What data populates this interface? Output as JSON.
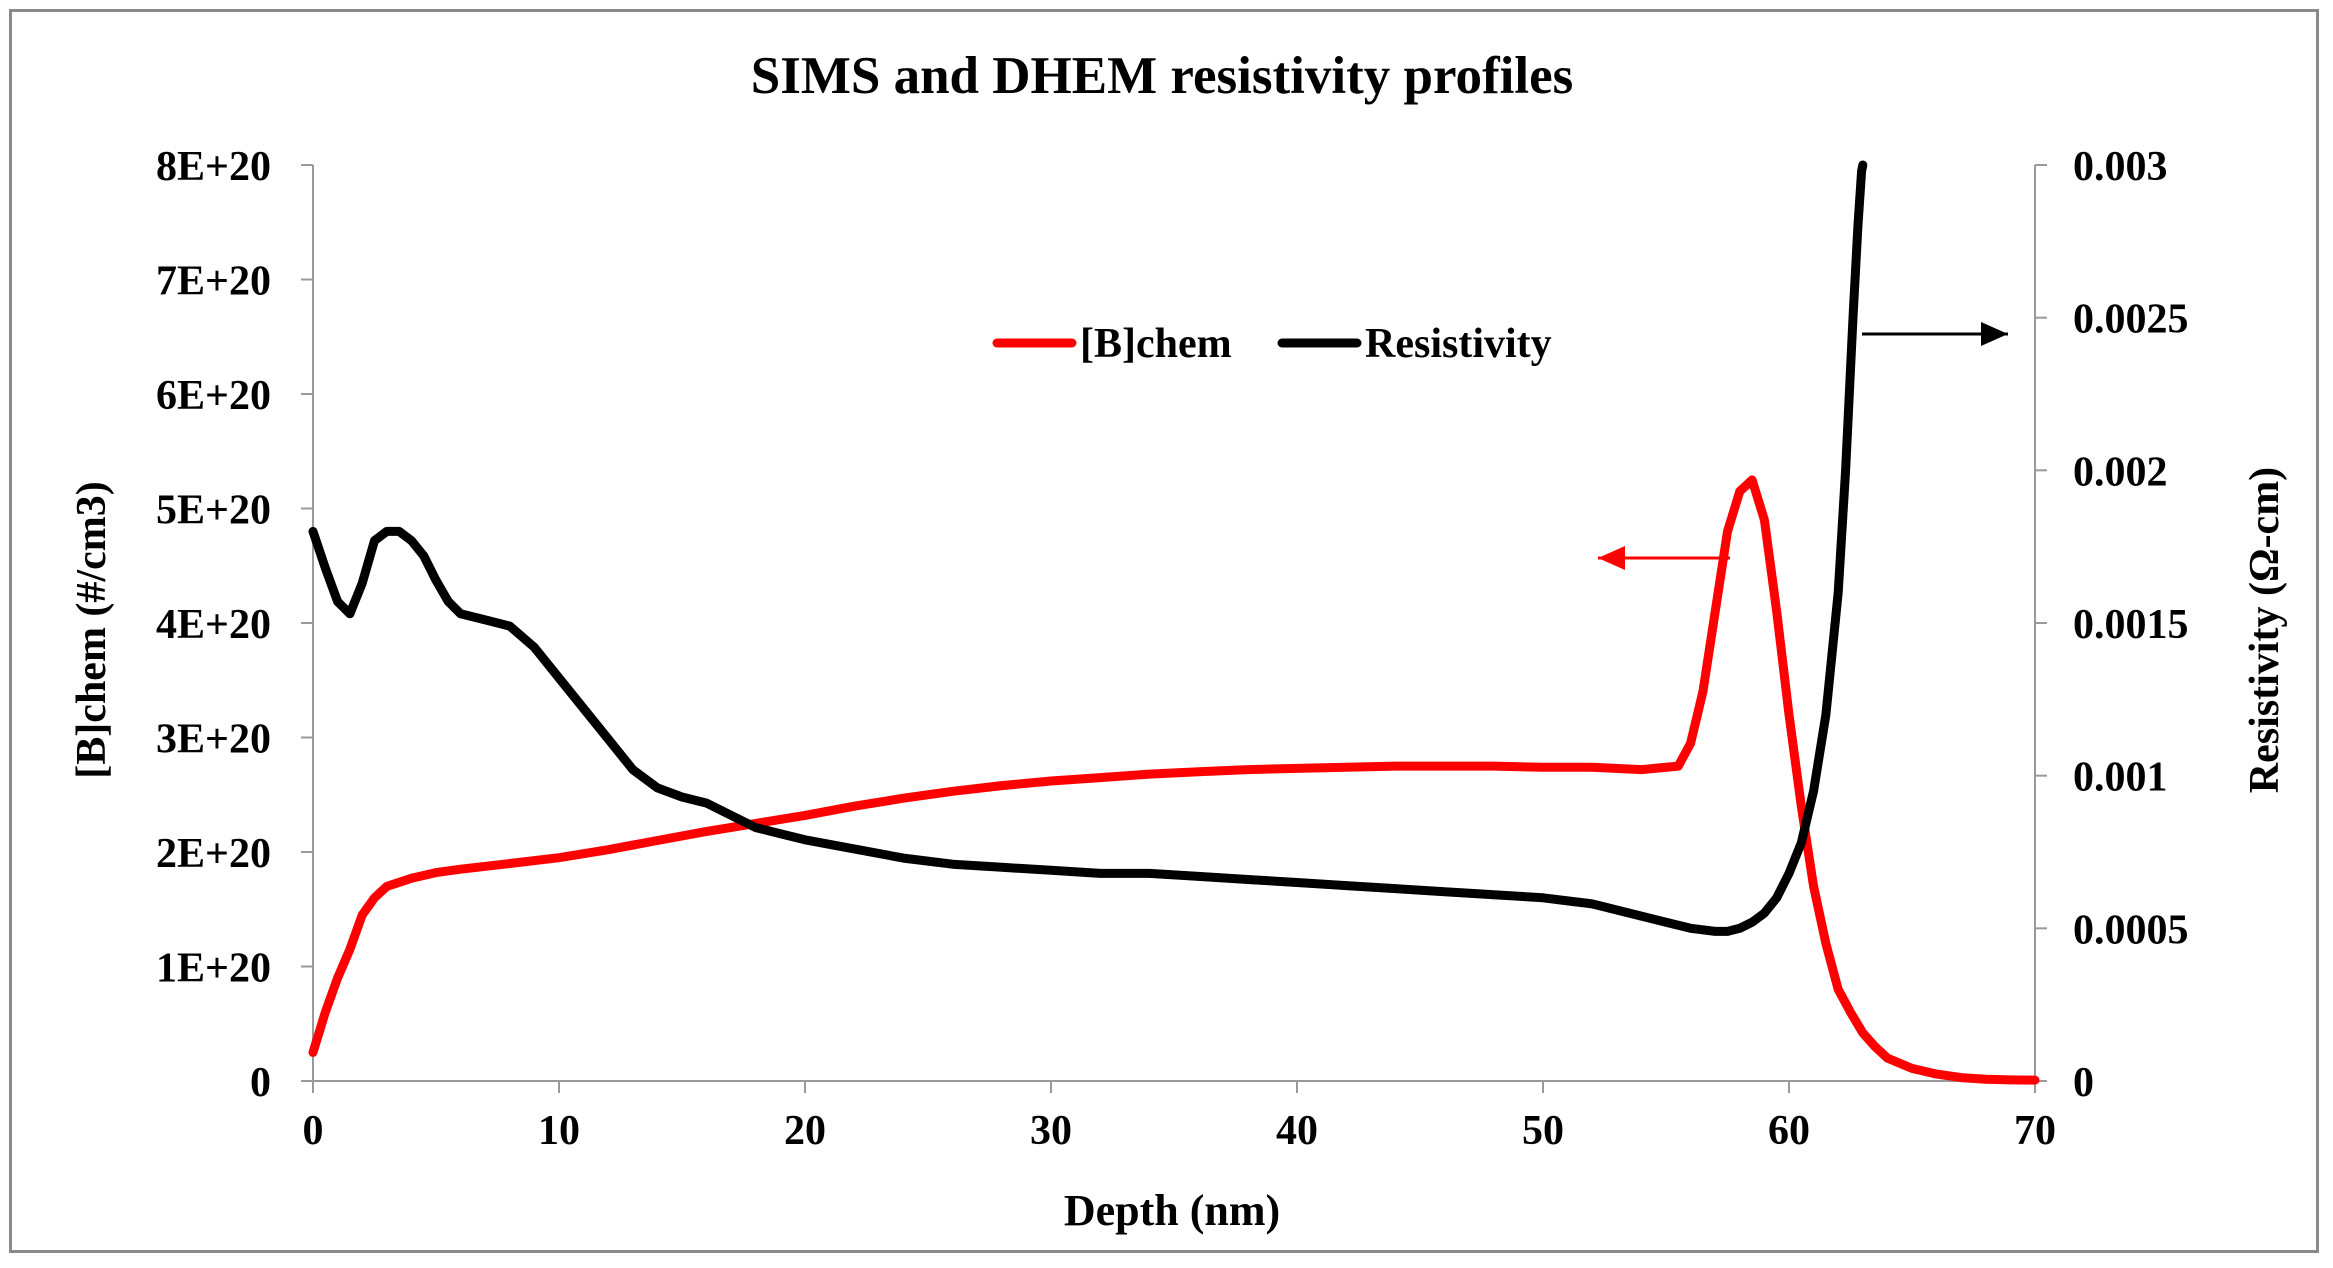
{
  "chart_data": {
    "type": "line",
    "title": "SIMS and DHEM resistivity profiles",
    "xlabel": "Depth (nm)",
    "ylabel_left": "[B]chem (#/cm3)",
    "ylabel_right": "Resistivity (Ω-cm)",
    "xlim": [
      0,
      70
    ],
    "ylim_left": [
      0,
      8e+20
    ],
    "ylim_right": [
      0,
      0.003
    ],
    "x_ticks": [
      0,
      10,
      20,
      30,
      40,
      50,
      60,
      70
    ],
    "x_tick_labels": [
      "0",
      "10",
      "20",
      "30",
      "40",
      "50",
      "60",
      "70"
    ],
    "left_ticks": [
      0,
      1e+20,
      2e+20,
      3e+20,
      4e+20,
      5e+20,
      6e+20,
      7e+20,
      8e+20
    ],
    "left_tick_labels": [
      "0",
      "1E+20",
      "2E+20",
      "3E+20",
      "4E+20",
      "5E+20",
      "6E+20",
      "7E+20",
      "8E+20"
    ],
    "right_ticks": [
      0,
      0.0005,
      0.001,
      0.0015,
      0.002,
      0.0025,
      0.003
    ],
    "right_tick_labels": [
      "0",
      "0.0005",
      "0.001",
      "0.0015",
      "0.002",
      "0.0025",
      "0.003"
    ],
    "grid": false,
    "legend_position": "top-center",
    "series": [
      {
        "name": "[B]chem",
        "axis": "left",
        "color": "#ff0000",
        "x": [
          0,
          0.5,
          1,
          1.5,
          2,
          2.5,
          3,
          4,
          5,
          6,
          8,
          10,
          12,
          14,
          16,
          18,
          20,
          22,
          24,
          26,
          28,
          30,
          32,
          34,
          36,
          38,
          40,
          42,
          44,
          46,
          48,
          50,
          52,
          54,
          55.5,
          56,
          56.5,
          57,
          57.5,
          58,
          58.5,
          59,
          59.5,
          60,
          60.5,
          61,
          61.5,
          62,
          62.5,
          63,
          63.5,
          64,
          65,
          66,
          67,
          68,
          69,
          70
        ],
        "y": [
          2.5e+19,
          6e+19,
          9e+19,
          1.15e+20,
          1.45e+20,
          1.6e+20,
          1.7e+20,
          1.77e+20,
          1.82e+20,
          1.85e+20,
          1.9e+20,
          1.95e+20,
          2.02e+20,
          2.1e+20,
          2.18e+20,
          2.25e+20,
          2.32e+20,
          2.4e+20,
          2.47e+20,
          2.53e+20,
          2.58e+20,
          2.62e+20,
          2.65e+20,
          2.68e+20,
          2.7e+20,
          2.72e+20,
          2.73e+20,
          2.74e+20,
          2.75e+20,
          2.75e+20,
          2.75e+20,
          2.74e+20,
          2.74e+20,
          2.72e+20,
          2.75e+20,
          2.95e+20,
          3.4e+20,
          4.1e+20,
          4.8e+20,
          5.15e+20,
          5.25e+20,
          4.9e+20,
          4.1e+20,
          3.2e+20,
          2.4e+20,
          1.7e+20,
          1.2e+20,
          8e+19,
          6e+19,
          4.2e+19,
          3e+19,
          2e+19,
          1.1e+19,
          6e+18,
          3e+18,
          1.5e+18,
          1e+18,
          8e+17
        ]
      },
      {
        "name": "Resistivity",
        "axis": "right",
        "color": "#000000",
        "x": [
          0,
          0.5,
          1,
          1.5,
          2,
          2.5,
          3,
          3.5,
          4,
          4.5,
          5,
          5.5,
          6,
          7,
          8,
          9,
          10,
          11,
          12,
          13,
          14,
          15,
          16,
          17,
          18,
          19,
          20,
          22,
          24,
          26,
          28,
          30,
          32,
          34,
          36,
          38,
          40,
          42,
          44,
          46,
          48,
          50,
          51,
          52,
          53,
          54,
          55,
          56,
          57,
          57.5,
          58,
          58.5,
          59,
          59.5,
          60,
          60.5,
          61,
          61.5,
          62,
          62.3,
          62.6,
          62.8,
          62.95,
          63
        ],
        "y": [
          0.0018,
          0.00168,
          0.00157,
          0.00153,
          0.00163,
          0.00177,
          0.0018,
          0.0018,
          0.00177,
          0.00172,
          0.00164,
          0.00157,
          0.00153,
          0.00151,
          0.00149,
          0.00142,
          0.00132,
          0.00122,
          0.00112,
          0.00102,
          0.00096,
          0.00093,
          0.00091,
          0.00087,
          0.00083,
          0.00081,
          0.00079,
          0.00076,
          0.00073,
          0.00071,
          0.0007,
          0.00069,
          0.00068,
          0.00068,
          0.00067,
          0.00066,
          0.00065,
          0.00064,
          0.00063,
          0.00062,
          0.00061,
          0.0006,
          0.00059,
          0.00058,
          0.00056,
          0.00054,
          0.00052,
          0.0005,
          0.00049,
          0.00049,
          0.0005,
          0.00052,
          0.00055,
          0.0006,
          0.00068,
          0.00078,
          0.00095,
          0.0012,
          0.0016,
          0.002,
          0.0025,
          0.0028,
          0.00298,
          0.003
        ]
      }
    ],
    "annotations": [
      {
        "name": "left-axis-arrow",
        "label": "",
        "points_to": "left"
      },
      {
        "name": "right-axis-arrow",
        "label": "",
        "points_to": "right"
      }
    ]
  }
}
